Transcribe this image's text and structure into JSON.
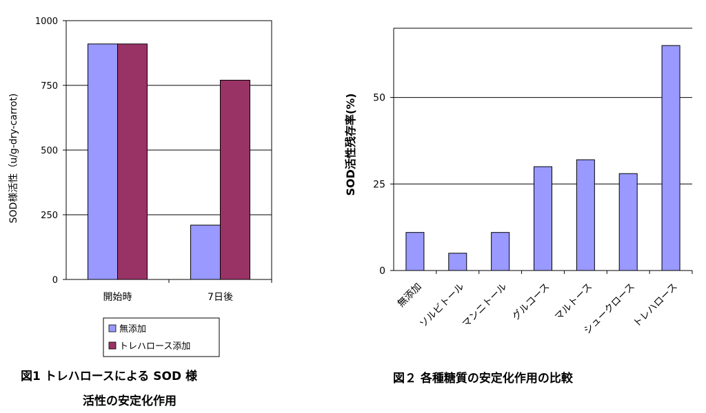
{
  "chart_data": [
    {
      "type": "bar",
      "categories": [
        "開始時",
        "7日後"
      ],
      "series": [
        {
          "name": "無添加",
          "values": [
            910,
            210
          ]
        },
        {
          "name": "トレハロース添加",
          "values": [
            910,
            770
          ]
        }
      ],
      "xlabel": "",
      "ylabel": "SOD様活性（u/g-dry-carrot)",
      "ylim": [
        0,
        1000
      ],
      "yticks": [
        0,
        250,
        500,
        750,
        1000
      ],
      "grid": true,
      "legend": "bottom",
      "colors": [
        "#9999ff",
        "#993366"
      ],
      "caption_line1": "図1 トレハロースによる SOD 様",
      "caption_line2": "活性の安定化作用"
    },
    {
      "type": "bar",
      "categories": [
        "無添加",
        "ソルビトール",
        "マンニトール",
        "グルコース",
        "マルトース",
        "シュークロース",
        "トレハロース"
      ],
      "series": [
        {
          "values": [
            11,
            5,
            11,
            30,
            32,
            28,
            65
          ]
        }
      ],
      "xlabel": "",
      "ylabel": "SOD活性残存率(%)",
      "ylim": [
        0,
        70
      ],
      "yticks": [
        0,
        25,
        50
      ],
      "grid": true,
      "colors": [
        "#9999ff"
      ],
      "caption": "図２ 各種糖質の安定化作用の比較"
    }
  ]
}
